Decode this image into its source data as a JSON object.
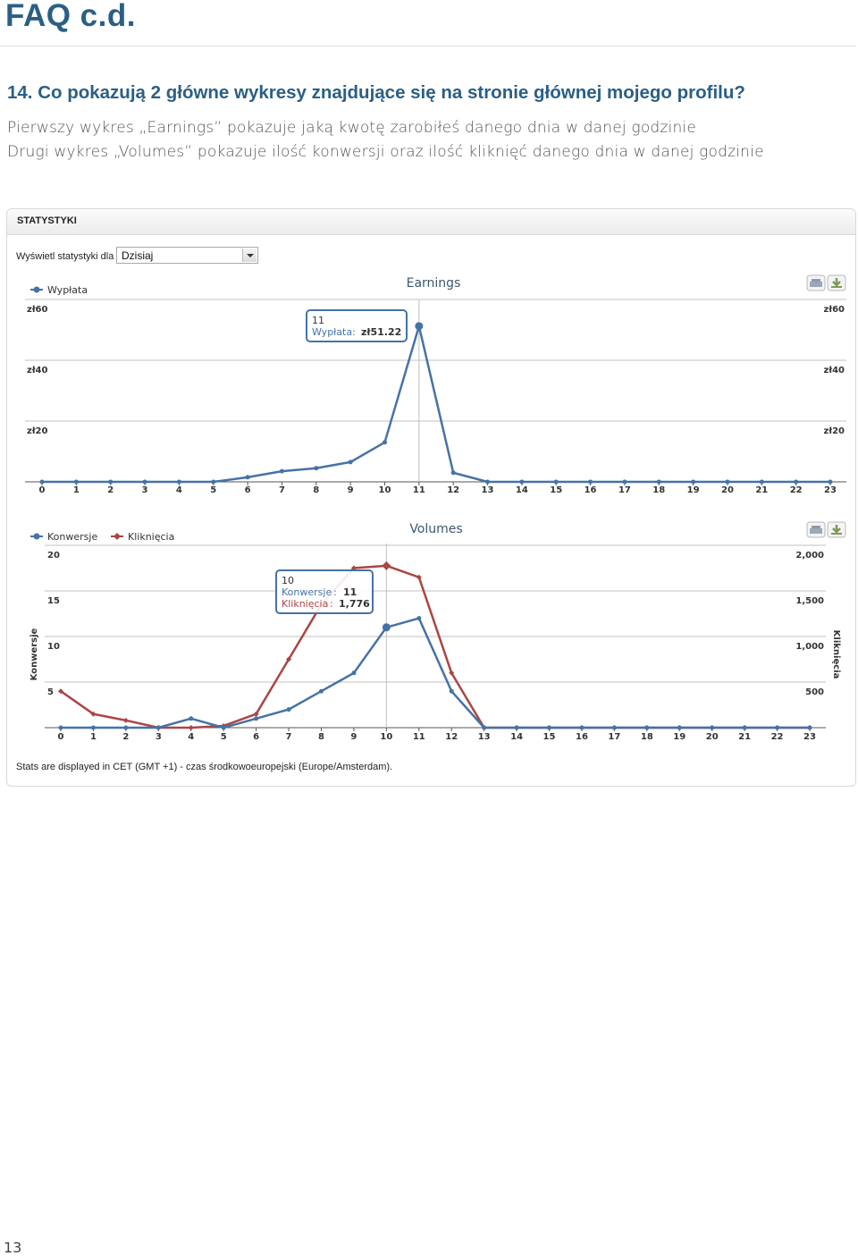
{
  "page": {
    "title": "FAQ c.d.",
    "question": "14. Co pokazują 2 główne wykresy znajdujące się na stronie głównej mojego profilu?",
    "answer_1": "Pierwszy wykres „Earnings” pokazuje jaką kwotę zarobiłeś danego dnia w danej godzinie",
    "answer_2": "Drugi wykres „Volumes” pokazuje ilość konwersji oraz ilość kliknięć danego dnia w danej godzinie",
    "page_number": "13"
  },
  "panel": {
    "title": "STATYSTYKI",
    "filter_label": "Wyświetl statystyki dla",
    "filter_value": "Dzisiaj",
    "footnote": "Stats are displayed in CET (GMT +1) - czas środkowoeuropejski (Europe/Amsterdam)."
  },
  "icons": [
    "print-icon",
    "download-icon"
  ],
  "chart_data": [
    {
      "type": "line",
      "title": "Earnings",
      "x": [
        0,
        1,
        2,
        3,
        4,
        5,
        6,
        7,
        8,
        9,
        10,
        11,
        12,
        13,
        14,
        15,
        16,
        17,
        18,
        19,
        20,
        21,
        22,
        23
      ],
      "series": [
        {
          "name": "Wypłata",
          "color": "#4572a7",
          "values": [
            0,
            0,
            0,
            0,
            0,
            0,
            1.5,
            3.5,
            4.5,
            6.5,
            13,
            51.22,
            3,
            0,
            0,
            0,
            0,
            0,
            0,
            0,
            0,
            0,
            0,
            0
          ]
        }
      ],
      "y_ticks": [
        "zł20",
        "zł40",
        "zł60"
      ],
      "ylim": [
        0,
        60
      ],
      "grid": true,
      "legend": "top-left",
      "tooltip": {
        "x": "11",
        "series": "Wypłata",
        "value": "zł51.22"
      },
      "hover_x": 11
    },
    {
      "type": "line",
      "title": "Volumes",
      "x": [
        0,
        1,
        2,
        3,
        4,
        5,
        6,
        7,
        8,
        9,
        10,
        11,
        12,
        13,
        14,
        15,
        16,
        17,
        18,
        19,
        20,
        21,
        22,
        23
      ],
      "ylabel": "Konwersje",
      "y2label": "Kliknięcia",
      "series": [
        {
          "name": "Konwersje",
          "axis": "left",
          "color": "#4572a7",
          "values": [
            0,
            0,
            0,
            0,
            1,
            0,
            1,
            2,
            4,
            6,
            11,
            12,
            4,
            0,
            0,
            0,
            0,
            0,
            0,
            0,
            0,
            0,
            0,
            0
          ]
        },
        {
          "name": "Kliknięcia",
          "axis": "right",
          "color": "#aa4643",
          "values": [
            400,
            150,
            80,
            0,
            0,
            20,
            150,
            750,
            1350,
            1750,
            1776,
            1650,
            600,
            0,
            0,
            0,
            0,
            0,
            0,
            0,
            0,
            0,
            0,
            0
          ]
        }
      ],
      "y_ticks_left": [
        "5",
        "10",
        "15",
        "20"
      ],
      "y_ticks_right": [
        "500",
        "1,000",
        "1,500",
        "2,000"
      ],
      "ylim": [
        0,
        20
      ],
      "y2lim": [
        0,
        2000
      ],
      "grid": true,
      "legend": "top-left",
      "tooltip": {
        "x": "10",
        "series_1": "Konwersje",
        "value_1": "11",
        "series_2": "Kliknięcia",
        "value_2": "1,776"
      },
      "hover_x": 10
    }
  ]
}
